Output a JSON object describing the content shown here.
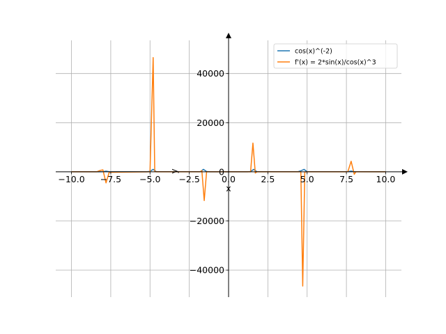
{
  "chart_data": {
    "type": "line",
    "title": "",
    "xlabel": "x",
    "ylabel": "y",
    "xlim": [
      -11,
      11
    ],
    "ylim": [
      -51000,
      53500
    ],
    "grid": true,
    "legend_position": "top-right",
    "x_ticks": [
      -10.0,
      -7.5,
      -5.0,
      -2.5,
      0.0,
      2.5,
      5.0,
      7.5,
      10.0
    ],
    "x_tick_labels": [
      "−10.0",
      "−7.5",
      "−5.0",
      "−2.5",
      "0.0",
      "2.5",
      "5.0",
      "7.5",
      "10.0"
    ],
    "y_ticks": [
      -40000,
      -20000,
      0,
      20000,
      40000
    ],
    "y_tick_labels": [
      "−40000",
      "−20000",
      "0",
      "20000",
      "40000"
    ],
    "series": [
      {
        "name": "cos(x)^(-2)",
        "color": "#1f77b4",
        "x": [
          -10,
          -8.3,
          -8.0,
          -7.8,
          -7.6,
          -5.2,
          -5.0,
          -4.8,
          -4.6,
          -1.8,
          -1.6,
          -1.4,
          -1.2,
          1.2,
          1.4,
          1.6,
          1.8,
          4.4,
          4.6,
          4.8,
          5.0,
          7.6,
          7.8,
          8.0,
          10
        ],
        "y": [
          1.4,
          3,
          50,
          250,
          40,
          5,
          200,
          1000,
          60,
          50,
          1000,
          120,
          7,
          7,
          120,
          1000,
          50,
          30,
          400,
          1000,
          40,
          40,
          300,
          50,
          1.4
        ]
      },
      {
        "name": "f'(x) = 2*sin(x)/cos(x)^3",
        "color": "#ff7f0e",
        "x": [
          -10,
          -8.4,
          -8.2,
          -8.0,
          -7.8,
          -7.6,
          -5.0,
          -4.8,
          -4.7,
          -4.6,
          -1.8,
          -1.7,
          -1.55,
          -1.4,
          -1.3,
          1.2,
          1.4,
          1.55,
          1.7,
          1.8,
          4.5,
          4.6,
          4.72,
          4.85,
          5.0,
          7.5,
          7.6,
          7.8,
          8.0,
          8.1,
          10
        ],
        "y": [
          0,
          0,
          500,
          800,
          -4500,
          -200,
          0,
          46500,
          100,
          0,
          0,
          500,
          -11700,
          0,
          0,
          0,
          0,
          11700,
          -500,
          0,
          0,
          0,
          -46500,
          -100,
          0,
          0,
          200,
          4300,
          -1000,
          0,
          0
        ]
      }
    ]
  }
}
